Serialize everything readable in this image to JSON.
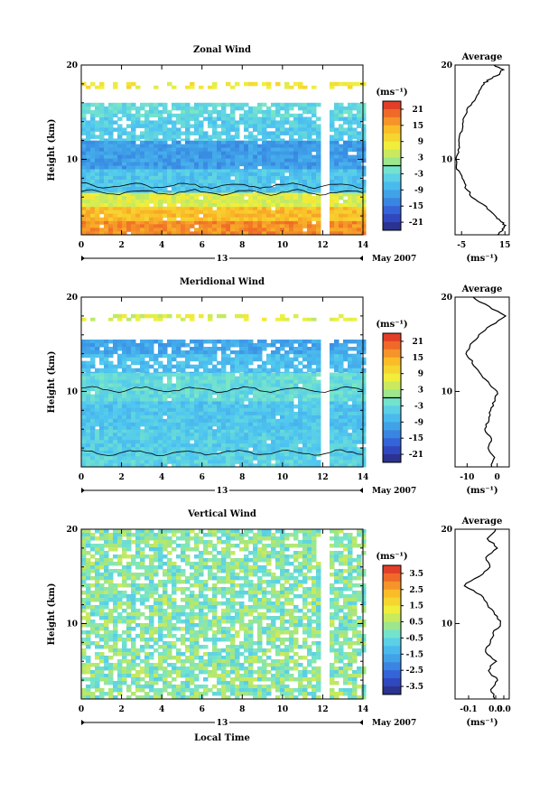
{
  "chart_data": [
    {
      "type": "heatmap",
      "title": "Zonal Wind",
      "ylabel": "Height (km)",
      "ylim": [
        2,
        20
      ],
      "xlim": [
        0,
        14
      ],
      "y_ticks": [
        "10",
        "20"
      ],
      "x_ticks": [
        "0",
        "2",
        "4",
        "6",
        "8",
        "10",
        "12",
        "14"
      ],
      "date_label": "13",
      "month_label": "May 2007",
      "colorbar": {
        "unit": "(ms⁻¹)",
        "range": [
          -24,
          24
        ],
        "ticks": [
          "21",
          "15",
          "9",
          "3",
          "-3",
          "-9",
          "-15",
          "-21"
        ],
        "zero_line": true
      },
      "data_gap_hour": 12,
      "layers": [
        {
          "y_from": 2,
          "y_to": 3.5,
          "value": 17
        },
        {
          "y_from": 3.5,
          "y_to": 5,
          "value": 13
        },
        {
          "y_from": 5,
          "y_to": 6.5,
          "value": 6
        },
        {
          "y_from": 6.5,
          "y_to": 9,
          "value": -6
        },
        {
          "y_from": 9,
          "y_to": 12,
          "value": -11
        },
        {
          "y_from": 12,
          "y_to": 14.5,
          "value": -5
        },
        {
          "y_from": 14.5,
          "y_to": 16,
          "value": -3
        },
        {
          "y_from": 17.5,
          "y_to": 18.2,
          "value": 8
        }
      ],
      "profile": {
        "title": "Average",
        "xlabel": "(ms⁻¹)",
        "x_ticks": [
          "-5",
          "15"
        ],
        "xlim": [
          -8,
          17
        ],
        "y_ticks": [
          "10",
          "20"
        ],
        "heights": [
          2,
          2.5,
          3,
          3.5,
          4,
          5,
          6,
          7,
          8,
          9,
          10,
          11,
          12,
          13,
          14,
          15,
          16,
          17,
          18,
          18.5,
          19,
          19.5,
          20
        ],
        "values": [
          12,
          14,
          15,
          13,
          10,
          6,
          0,
          -3,
          -5,
          -7,
          -8,
          -6,
          -6,
          -5,
          -4,
          -3,
          0,
          3,
          5,
          8,
          12,
          14,
          10
        ]
      }
    },
    {
      "type": "heatmap",
      "title": "Meridional Wind",
      "ylabel": "Height (km)",
      "ylim": [
        2,
        20
      ],
      "xlim": [
        0,
        14
      ],
      "y_ticks": [
        "10",
        "20"
      ],
      "x_ticks": [
        "0",
        "2",
        "4",
        "6",
        "8",
        "10",
        "12",
        "14"
      ],
      "date_label": "13",
      "month_label": "May 2007",
      "colorbar": {
        "unit": "(ms⁻¹)",
        "range": [
          -24,
          24
        ],
        "ticks": [
          "21",
          "15",
          "9",
          "3",
          "-3",
          "-9",
          "-15",
          "-21"
        ],
        "zero_line": true
      },
      "data_gap_hour": 12,
      "layers": [
        {
          "y_from": 2,
          "y_to": 3.5,
          "value": -4
        },
        {
          "y_from": 3.5,
          "y_to": 6,
          "value": -5
        },
        {
          "y_from": 6,
          "y_to": 9,
          "value": -6
        },
        {
          "y_from": 9,
          "y_to": 12,
          "value": -3
        },
        {
          "y_from": 12,
          "y_to": 14,
          "value": -7
        },
        {
          "y_from": 14,
          "y_to": 15.5,
          "value": -10
        },
        {
          "y_from": 17.5,
          "y_to": 18.2,
          "value": 6
        }
      ],
      "profile": {
        "title": "Average",
        "xlabel": "(ms⁻¹)",
        "x_ticks": [
          "-10",
          "0"
        ],
        "xlim": [
          -14,
          4
        ],
        "y_ticks": [
          "10",
          "20"
        ],
        "heights": [
          2,
          3,
          4,
          5,
          6,
          7,
          8,
          9,
          10,
          11,
          12,
          13,
          14,
          15,
          16,
          17,
          18,
          19,
          20
        ],
        "values": [
          -2,
          -1,
          -3,
          -2,
          -4,
          -3,
          -2,
          -1,
          0,
          -3,
          -6,
          -8,
          -10,
          -9,
          -6,
          -2,
          3,
          -3,
          -8
        ]
      }
    },
    {
      "type": "heatmap",
      "title": "Vertical Wind",
      "ylabel": "Height (km)",
      "xlabel": "Local Time",
      "ylim": [
        2,
        20
      ],
      "xlim": [
        0,
        14
      ],
      "y_ticks": [
        "10",
        "20"
      ],
      "x_ticks": [
        "0",
        "2",
        "4",
        "6",
        "8",
        "10",
        "12",
        "14"
      ],
      "date_label": "13",
      "month_label": "May 2007",
      "colorbar": {
        "unit": "(ms⁻¹)",
        "range": [
          -4,
          4
        ],
        "ticks": [
          "3.5",
          "2.5",
          "1.5",
          "0.5",
          "-0.5",
          "-1.5",
          "-2.5",
          "-3.5"
        ],
        "zero_line": false
      },
      "data_gap_hour": 12,
      "layers": [
        {
          "y_from": 2,
          "y_to": 20,
          "value": 0
        }
      ],
      "profile": {
        "title": "Average",
        "xlabel": "(ms⁻¹)",
        "x_ticks": [
          "-0.1",
          "0.0",
          "0.0"
        ],
        "xlim": [
          -0.15,
          0.05
        ],
        "y_ticks": [
          "10",
          "20"
        ],
        "heights": [
          2,
          3,
          4,
          5,
          6,
          7,
          8,
          9,
          10,
          11,
          12,
          13,
          14,
          15,
          16,
          17,
          18,
          19,
          20
        ],
        "values": [
          0.0,
          -0.02,
          0.01,
          -0.03,
          0.0,
          -0.04,
          -0.02,
          -0.01,
          0.02,
          0.0,
          -0.03,
          -0.05,
          -0.12,
          -0.06,
          -0.02,
          -0.04,
          0.01,
          -0.03,
          0.0
        ]
      }
    }
  ]
}
